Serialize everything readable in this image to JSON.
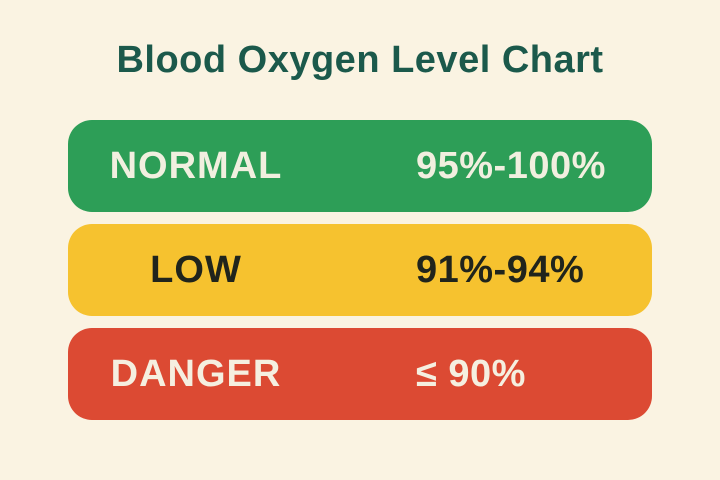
{
  "title": "Blood Oxygen Level Chart",
  "bands": [
    {
      "label": "NORMAL",
      "range": "95%-100%",
      "color": "#2d9e57",
      "text_color": "#f1efdf"
    },
    {
      "label": "LOW",
      "range": "91%-94%",
      "color": "#f6c22f",
      "text_color": "#20241c"
    },
    {
      "label": "DANGER",
      "range": "≤ 90%",
      "color": "#dc4a33",
      "text_color": "#f5efe0"
    }
  ],
  "colors": {
    "background": "#faf3e2",
    "title": "#1b594b"
  },
  "chart_data": {
    "type": "table",
    "title": "Blood Oxygen Level Chart",
    "rows": [
      {
        "level": "NORMAL",
        "range": "95%-100%",
        "min_percent": 95,
        "max_percent": 100,
        "color": "#2d9e57"
      },
      {
        "level": "LOW",
        "range": "91%-94%",
        "min_percent": 91,
        "max_percent": 94,
        "color": "#f6c22f"
      },
      {
        "level": "DANGER",
        "range": "≤ 90%",
        "max_percent": 90,
        "color": "#dc4a33"
      }
    ],
    "legend_position": "none",
    "grid": false
  }
}
